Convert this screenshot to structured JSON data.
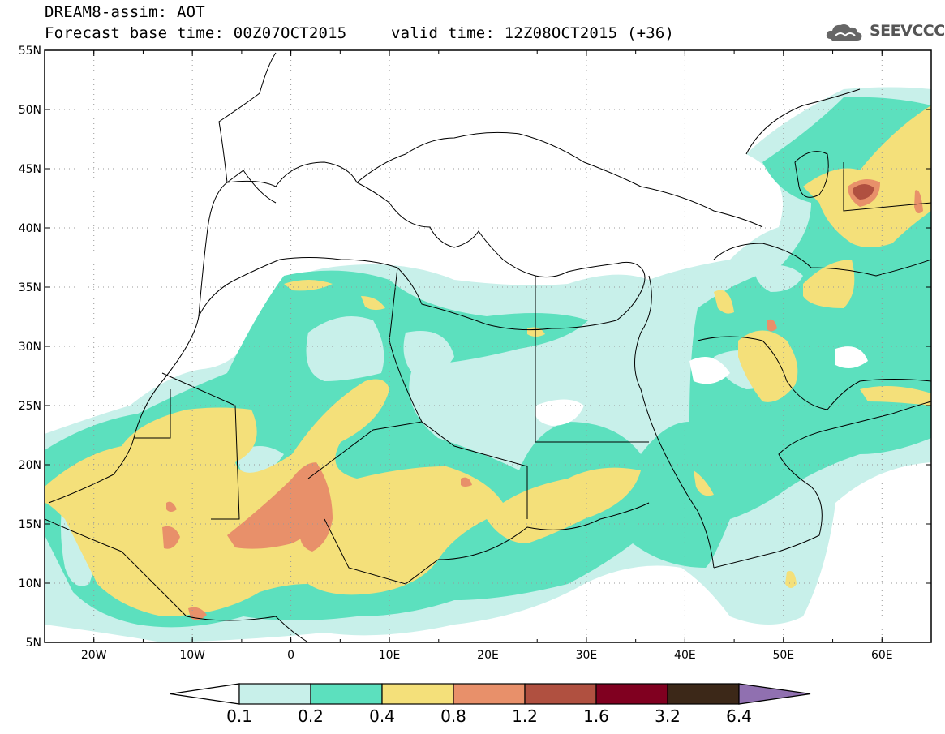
{
  "header": {
    "title": "DREAM8-assim: AOT",
    "base_time": "Forecast base time: 00Z07OCT2015",
    "valid_time": "valid time: 12Z08OCT2015 (+36)",
    "logo_text": "SEEVCCC"
  },
  "map": {
    "lat_labels": [
      "55N",
      "50N",
      "45N",
      "40N",
      "35N",
      "30N",
      "25N",
      "20N",
      "15N",
      "10N",
      "5N"
    ],
    "lon_labels": [
      "20W",
      "10W",
      "0",
      "10E",
      "20E",
      "30E",
      "40E",
      "50E",
      "60E"
    ],
    "lat_range": [
      5,
      55
    ],
    "lon_range": [
      -25,
      65
    ],
    "grid": "dotted"
  },
  "colorbar": {
    "labels": [
      "0.1",
      "0.2",
      "0.4",
      "0.8",
      "1.2",
      "1.6",
      "3.2",
      "6.4"
    ],
    "colors": [
      "#ffffff",
      "#c8f0ea",
      "#5ce0be",
      "#f4e07a",
      "#e8906a",
      "#b05040",
      "#800020",
      "#3c2818",
      "#9070b0"
    ]
  },
  "colors": {
    "aot_0_1": "#c8f0ea",
    "aot_0_2": "#5ce0be",
    "aot_0_4": "#f4e07a",
    "aot_0_8": "#e8906a",
    "aot_1_2": "#b05040"
  }
}
